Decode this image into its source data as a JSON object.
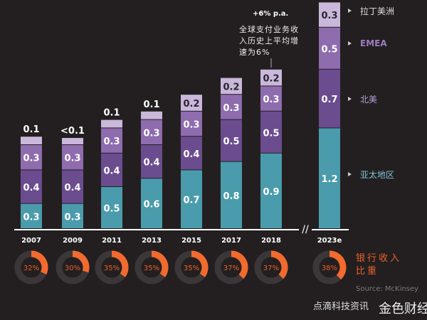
{
  "chart_data": {
    "type": "bar",
    "stacked": true,
    "categories": [
      "2007",
      "2009",
      "2011",
      "2013",
      "2015",
      "2017",
      "2018",
      "2023e"
    ],
    "series": [
      {
        "name": "亚太地区",
        "color": "#4a9bab",
        "values": [
          0.3,
          0.3,
          0.5,
          0.6,
          0.7,
          0.8,
          0.9,
          1.2
        ],
        "labels": [
          "0.3",
          "0.3",
          "0.5",
          "0.6",
          "0.7",
          "0.8",
          "0.9",
          "1.2"
        ]
      },
      {
        "name": "北美",
        "color": "#6b4c8f",
        "values": [
          0.4,
          0.4,
          0.4,
          0.4,
          0.4,
          0.5,
          0.5,
          0.7
        ],
        "labels": [
          "0.4",
          "0.4",
          "0.4",
          "0.4",
          "0.4",
          "0.5",
          "0.5",
          "0.7"
        ]
      },
      {
        "name": "EMEA",
        "color": "#8e6cae",
        "values": [
          0.3,
          0.3,
          0.3,
          0.3,
          0.3,
          0.3,
          0.3,
          0.5
        ],
        "labels": [
          "0.3",
          "0.3",
          "0.3",
          "0.3",
          "0.3",
          "0.3",
          "0.3",
          "0.5"
        ]
      },
      {
        "name": "拉丁美洲",
        "color": "#c9b8da",
        "values": [
          0.1,
          0.05,
          0.1,
          0.1,
          0.2,
          0.2,
          0.2,
          0.3
        ],
        "labels": [
          "0.1",
          "<0.1",
          "0.1",
          "0.1",
          "0.2",
          "0.2",
          "0.2",
          "0.3"
        ]
      }
    ],
    "bank_revenue_share": {
      "label": "银行收入比重",
      "values": [
        32,
        30,
        35,
        35,
        35,
        37,
        37,
        38
      ],
      "labels": [
        "32%",
        "30%",
        "35%",
        "35%",
        "35%",
        "37%",
        "37%",
        "38%"
      ],
      "color": "#f26a2e"
    },
    "annotation": {
      "title": "+6% p.a.",
      "text": "全球支付业务收入历史上平均增速为6%"
    },
    "source": "Source: McKinsey",
    "axis_break_between": [
      "2018",
      "2023e"
    ]
  },
  "legend": [
    "拉丁美洲",
    "EMEA",
    "北美",
    "亚太地区"
  ],
  "share_label_lines": [
    "银行收入",
    "比重"
  ],
  "watermark": [
    "点滴科技资讯",
    "金色财经"
  ]
}
